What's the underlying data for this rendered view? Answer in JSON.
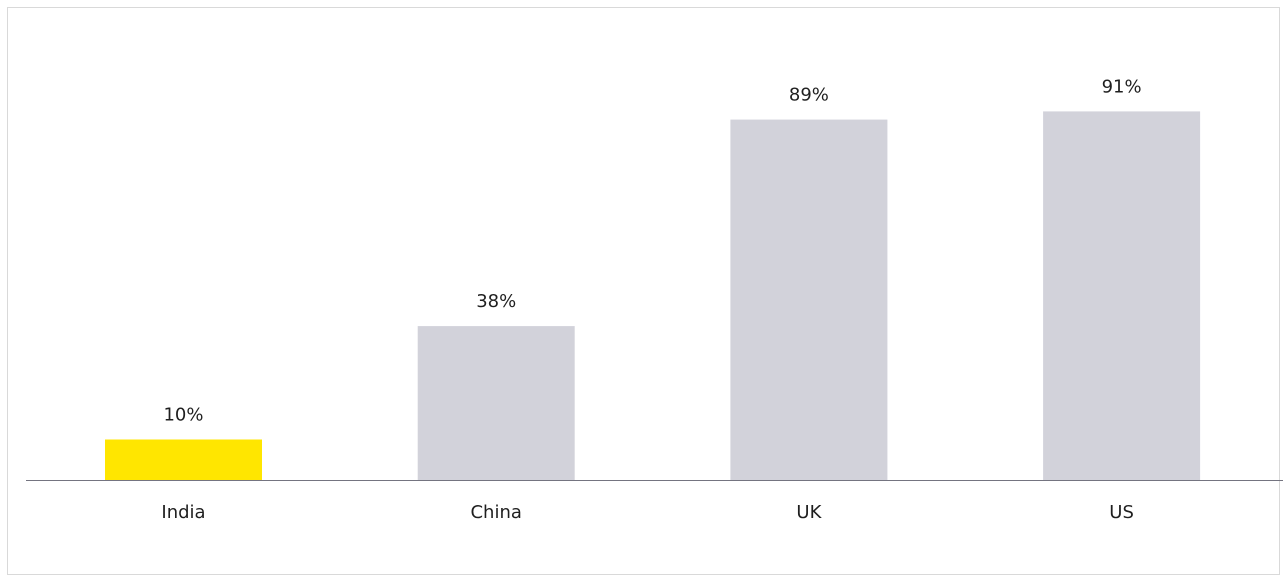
{
  "chart_data": {
    "type": "bar",
    "categories": [
      "India",
      "China",
      "UK",
      "US"
    ],
    "values": [
      10,
      38,
      89,
      91
    ],
    "data_labels": [
      "10%",
      "38%",
      "89%",
      "91%"
    ],
    "title": "",
    "xlabel": "",
    "ylabel": "",
    "ylim": [
      0,
      100
    ],
    "grid": false,
    "legend": "none",
    "colors": {
      "highlight": "#FFE600",
      "default": "#D2D2DA",
      "axis": "#747480"
    },
    "highlight_category": "India"
  }
}
